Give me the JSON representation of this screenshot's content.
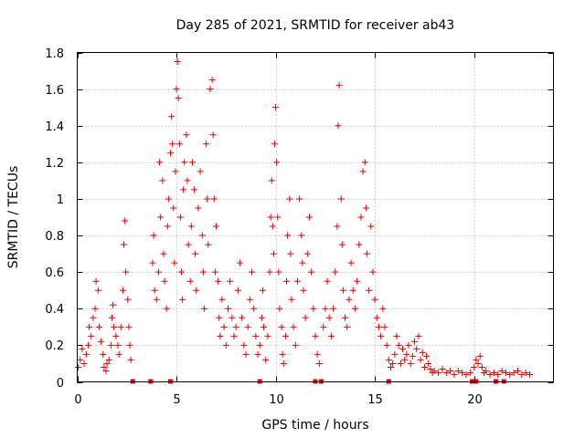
{
  "chart_data": {
    "type": "scatter",
    "title": "Day 285 of 2021, SRMTID for receiver ab43",
    "xlabel": "GPS time / hours",
    "ylabel": "SRMTID / TECUs",
    "xlim": [
      0,
      24
    ],
    "ylim": [
      0,
      1.8
    ],
    "x_ticks": [
      0,
      5,
      10,
      15,
      20
    ],
    "x_tick_labels": [
      "0",
      "5",
      "10",
      "15",
      "20"
    ],
    "y_ticks": [
      0,
      0.2,
      0.4,
      0.6,
      0.8,
      1,
      1.2,
      1.4,
      1.6,
      1.8
    ],
    "y_tick_labels": [
      "0",
      "0.2",
      "0.4",
      "0.6",
      "0.8",
      "1",
      "1.2",
      "1.4",
      "1.6",
      "1.8"
    ],
    "grid": true,
    "marker": "plus",
    "color": "#e00000",
    "series": [
      {
        "name": "SRMTID",
        "points": [
          [
            0.05,
            0.08
          ],
          [
            0.15,
            0.12
          ],
          [
            0.25,
            0.18
          ],
          [
            0.35,
            0.1
          ],
          [
            0.45,
            0.15
          ],
          [
            0.55,
            0.2
          ],
          [
            0.6,
            0.3
          ],
          [
            0.7,
            0.25
          ],
          [
            0.8,
            0.35
          ],
          [
            0.9,
            0.4
          ],
          [
            0.95,
            0.55
          ],
          [
            1.05,
            0.5
          ],
          [
            1.1,
            0.3
          ],
          [
            1.2,
            0.22
          ],
          [
            1.3,
            0.15
          ],
          [
            1.35,
            0.08
          ],
          [
            1.45,
            0.06
          ],
          [
            1.5,
            0.1
          ],
          [
            1.6,
            0.12
          ],
          [
            1.7,
            0.2
          ],
          [
            1.75,
            0.35
          ],
          [
            1.8,
            0.42
          ],
          [
            1.85,
            0.3
          ],
          [
            1.95,
            0.25
          ],
          [
            2.05,
            0.2
          ],
          [
            2.1,
            0.15
          ],
          [
            2.2,
            0.3
          ],
          [
            2.3,
            0.5
          ],
          [
            2.35,
            0.75
          ],
          [
            2.4,
            0.88
          ],
          [
            2.45,
            0.6
          ],
          [
            2.55,
            0.45
          ],
          [
            2.6,
            0.3
          ],
          [
            2.65,
            0.2
          ],
          [
            2.7,
            0.12
          ],
          [
            3.8,
            0.65
          ],
          [
            3.85,
            0.8
          ],
          [
            3.9,
            0.5
          ],
          [
            4.0,
            0.45
          ],
          [
            4.1,
            0.6
          ],
          [
            4.15,
            1.2
          ],
          [
            4.2,
            0.9
          ],
          [
            4.3,
            1.1
          ],
          [
            4.35,
            0.7
          ],
          [
            4.4,
            0.55
          ],
          [
            4.5,
            0.4
          ],
          [
            4.55,
            0.85
          ],
          [
            4.6,
            1.0
          ],
          [
            4.7,
            1.25
          ],
          [
            4.75,
            1.45
          ],
          [
            4.8,
            1.3
          ],
          [
            4.85,
            0.95
          ],
          [
            4.9,
            0.65
          ],
          [
            4.95,
            1.15
          ],
          [
            5.0,
            1.6
          ],
          [
            5.05,
            1.75
          ],
          [
            5.1,
            1.55
          ],
          [
            5.15,
            1.3
          ],
          [
            5.2,
            0.9
          ],
          [
            5.25,
            0.6
          ],
          [
            5.3,
            0.45
          ],
          [
            5.35,
            1.05
          ],
          [
            5.4,
            1.2
          ],
          [
            5.5,
            1.35
          ],
          [
            5.55,
            1.1
          ],
          [
            5.6,
            0.75
          ],
          [
            5.7,
            0.55
          ],
          [
            5.75,
            0.85
          ],
          [
            5.8,
            1.2
          ],
          [
            5.9,
            1.05
          ],
          [
            5.95,
            0.7
          ],
          [
            6.0,
            0.5
          ],
          [
            6.1,
            0.95
          ],
          [
            6.2,
            1.15
          ],
          [
            6.3,
            0.8
          ],
          [
            6.35,
            0.6
          ],
          [
            6.4,
            0.4
          ],
          [
            6.5,
            1.3
          ],
          [
            6.55,
            1.0
          ],
          [
            6.6,
            0.75
          ],
          [
            6.7,
            1.6
          ],
          [
            6.8,
            1.65
          ],
          [
            6.85,
            1.35
          ],
          [
            6.9,
            1.0
          ],
          [
            6.95,
            0.6
          ],
          [
            7.0,
            0.85
          ],
          [
            7.1,
            0.55
          ],
          [
            7.15,
            0.35
          ],
          [
            7.2,
            0.25
          ],
          [
            7.3,
            0.45
          ],
          [
            7.4,
            0.3
          ],
          [
            7.5,
            0.2
          ],
          [
            7.6,
            0.4
          ],
          [
            7.7,
            0.55
          ],
          [
            7.8,
            0.35
          ],
          [
            7.9,
            0.25
          ],
          [
            8.0,
            0.3
          ],
          [
            8.1,
            0.5
          ],
          [
            8.2,
            0.65
          ],
          [
            8.3,
            0.35
          ],
          [
            8.4,
            0.2
          ],
          [
            8.5,
            0.15
          ],
          [
            8.6,
            0.3
          ],
          [
            8.7,
            0.45
          ],
          [
            8.8,
            0.6
          ],
          [
            8.9,
            0.4
          ],
          [
            9.0,
            0.25
          ],
          [
            9.1,
            0.15
          ],
          [
            9.2,
            0.2
          ],
          [
            9.3,
            0.35
          ],
          [
            9.35,
            0.5
          ],
          [
            9.4,
            0.3
          ],
          [
            9.5,
            0.12
          ],
          [
            9.6,
            0.25
          ],
          [
            9.7,
            0.6
          ],
          [
            9.75,
            0.9
          ],
          [
            9.8,
            1.1
          ],
          [
            9.85,
            0.85
          ],
          [
            9.9,
            0.7
          ],
          [
            9.95,
            1.3
          ],
          [
            10.0,
            1.5
          ],
          [
            10.05,
            1.2
          ],
          [
            10.1,
            0.9
          ],
          [
            10.15,
            0.6
          ],
          [
            10.2,
            0.4
          ],
          [
            10.3,
            0.3
          ],
          [
            10.35,
            0.15
          ],
          [
            10.4,
            0.1
          ],
          [
            10.5,
            0.25
          ],
          [
            10.55,
            0.55
          ],
          [
            10.6,
            0.8
          ],
          [
            10.7,
            1.0
          ],
          [
            10.75,
            0.7
          ],
          [
            10.8,
            0.45
          ],
          [
            10.9,
            0.3
          ],
          [
            11.0,
            0.2
          ],
          [
            11.1,
            0.55
          ],
          [
            11.2,
            1.0
          ],
          [
            11.3,
            0.8
          ],
          [
            11.35,
            0.65
          ],
          [
            11.4,
            0.5
          ],
          [
            11.5,
            0.35
          ],
          [
            11.6,
            0.7
          ],
          [
            11.7,
            0.9
          ],
          [
            11.8,
            0.6
          ],
          [
            11.9,
            0.4
          ],
          [
            12.0,
            0.25
          ],
          [
            12.1,
            0.15
          ],
          [
            12.2,
            0.1
          ],
          [
            12.4,
            0.3
          ],
          [
            12.5,
            0.4
          ],
          [
            12.6,
            0.55
          ],
          [
            12.7,
            0.35
          ],
          [
            12.8,
            0.25
          ],
          [
            12.9,
            0.4
          ],
          [
            13.0,
            0.6
          ],
          [
            13.1,
            0.85
          ],
          [
            13.15,
            1.4
          ],
          [
            13.2,
            1.62
          ],
          [
            13.3,
            1.0
          ],
          [
            13.35,
            0.75
          ],
          [
            13.4,
            0.5
          ],
          [
            13.5,
            0.35
          ],
          [
            13.6,
            0.3
          ],
          [
            13.7,
            0.45
          ],
          [
            13.8,
            0.65
          ],
          [
            13.9,
            0.5
          ],
          [
            14.0,
            0.4
          ],
          [
            14.1,
            0.55
          ],
          [
            14.2,
            0.75
          ],
          [
            14.3,
            0.9
          ],
          [
            14.4,
            1.15
          ],
          [
            14.5,
            1.2
          ],
          [
            14.55,
            0.95
          ],
          [
            14.6,
            0.7
          ],
          [
            14.7,
            0.5
          ],
          [
            14.8,
            0.85
          ],
          [
            14.9,
            0.6
          ],
          [
            15.0,
            0.45
          ],
          [
            15.1,
            0.35
          ],
          [
            15.2,
            0.3
          ],
          [
            15.3,
            0.25
          ],
          [
            15.4,
            0.4
          ],
          [
            15.5,
            0.3
          ],
          [
            15.6,
            0.2
          ],
          [
            15.7,
            0.12
          ],
          [
            15.8,
            0.08
          ],
          [
            15.9,
            0.1
          ],
          [
            16.0,
            0.15
          ],
          [
            16.1,
            0.25
          ],
          [
            16.2,
            0.2
          ],
          [
            16.3,
            0.1
          ],
          [
            16.4,
            0.18
          ],
          [
            16.5,
            0.12
          ],
          [
            16.6,
            0.15
          ],
          [
            16.7,
            0.2
          ],
          [
            16.8,
            0.1
          ],
          [
            16.9,
            0.14
          ],
          [
            17.0,
            0.22
          ],
          [
            17.1,
            0.18
          ],
          [
            17.2,
            0.25
          ],
          [
            17.3,
            0.12
          ],
          [
            17.4,
            0.16
          ],
          [
            17.5,
            0.08
          ],
          [
            17.6,
            0.14
          ],
          [
            17.7,
            0.1
          ],
          [
            17.8,
            0.07
          ],
          [
            17.9,
            0.05
          ],
          [
            18.0,
            0.06
          ],
          [
            18.2,
            0.05
          ],
          [
            18.4,
            0.07
          ],
          [
            18.6,
            0.05
          ],
          [
            18.8,
            0.06
          ],
          [
            19.0,
            0.04
          ],
          [
            19.2,
            0.06
          ],
          [
            19.4,
            0.05
          ],
          [
            19.6,
            0.04
          ],
          [
            19.8,
            0.05
          ],
          [
            20.0,
            0.08
          ],
          [
            20.1,
            0.12
          ],
          [
            20.2,
            0.1
          ],
          [
            20.3,
            0.14
          ],
          [
            20.4,
            0.08
          ],
          [
            20.5,
            0.05
          ],
          [
            20.6,
            0.06
          ],
          [
            20.8,
            0.04
          ],
          [
            21.0,
            0.05
          ],
          [
            21.2,
            0.04
          ],
          [
            21.4,
            0.06
          ],
          [
            21.6,
            0.05
          ],
          [
            21.8,
            0.04
          ],
          [
            22.0,
            0.05
          ],
          [
            22.2,
            0.06
          ],
          [
            22.4,
            0.04
          ],
          [
            22.6,
            0.05
          ],
          [
            22.8,
            0.04
          ]
        ]
      }
    ],
    "zero_markers_x": [
      2.8,
      3.7,
      4.7,
      9.2,
      12.0,
      12.3,
      15.7,
      19.9,
      20.1,
      21.1,
      21.5
    ]
  }
}
